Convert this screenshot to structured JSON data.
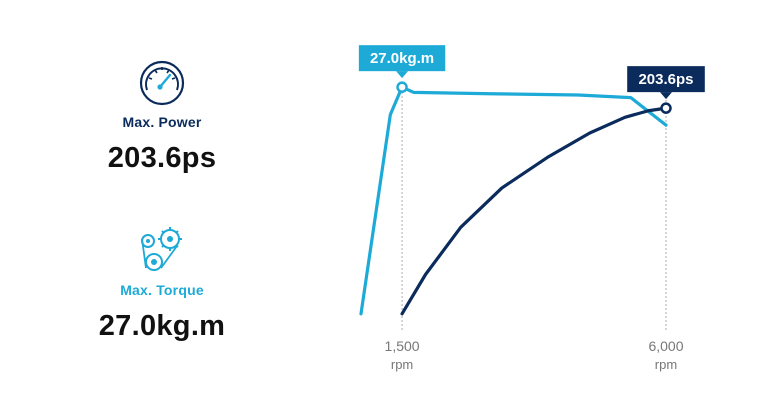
{
  "colors": {
    "power": "#0a2b5c",
    "torque": "#1eaad6",
    "text_dark": "#111111",
    "axis_text": "#777777",
    "guide_line": "#999999"
  },
  "power_stat": {
    "icon": "speedometer-icon",
    "label": "Max. Power",
    "value": "203.6ps"
  },
  "torque_stat": {
    "icon": "gears-belt-icon",
    "label": "Max. Torque",
    "value": "27.0kg.m"
  },
  "chart_data": {
    "type": "line",
    "title": "",
    "xlabel": "",
    "ylabel": "",
    "x_ticks": [
      {
        "value": 1500,
        "label": "1,500",
        "unit": "rpm"
      },
      {
        "value": 6000,
        "label": "6,000",
        "unit": "rpm"
      }
    ],
    "xlim": [
      800,
      6000
    ],
    "grid": false,
    "legend": "none",
    "series": [
      {
        "key": "torque",
        "x": [
          800,
          1300,
          1500,
          1700,
          3000,
          4500,
          5400,
          6000
        ],
        "y": [
          0.1,
          0.86,
          0.965,
          0.945,
          0.94,
          0.935,
          0.925,
          0.82
        ],
        "peak": {
          "x": 1500,
          "label": "27.0kg.m"
        }
      },
      {
        "key": "power",
        "x": [
          1500,
          1900,
          2500,
          3200,
          4000,
          4700,
          5300,
          5700,
          6000
        ],
        "y": [
          0.1,
          0.25,
          0.43,
          0.58,
          0.7,
          0.79,
          0.85,
          0.875,
          0.885
        ],
        "peak": {
          "x": 6000,
          "label": "203.6ps"
        }
      }
    ]
  }
}
